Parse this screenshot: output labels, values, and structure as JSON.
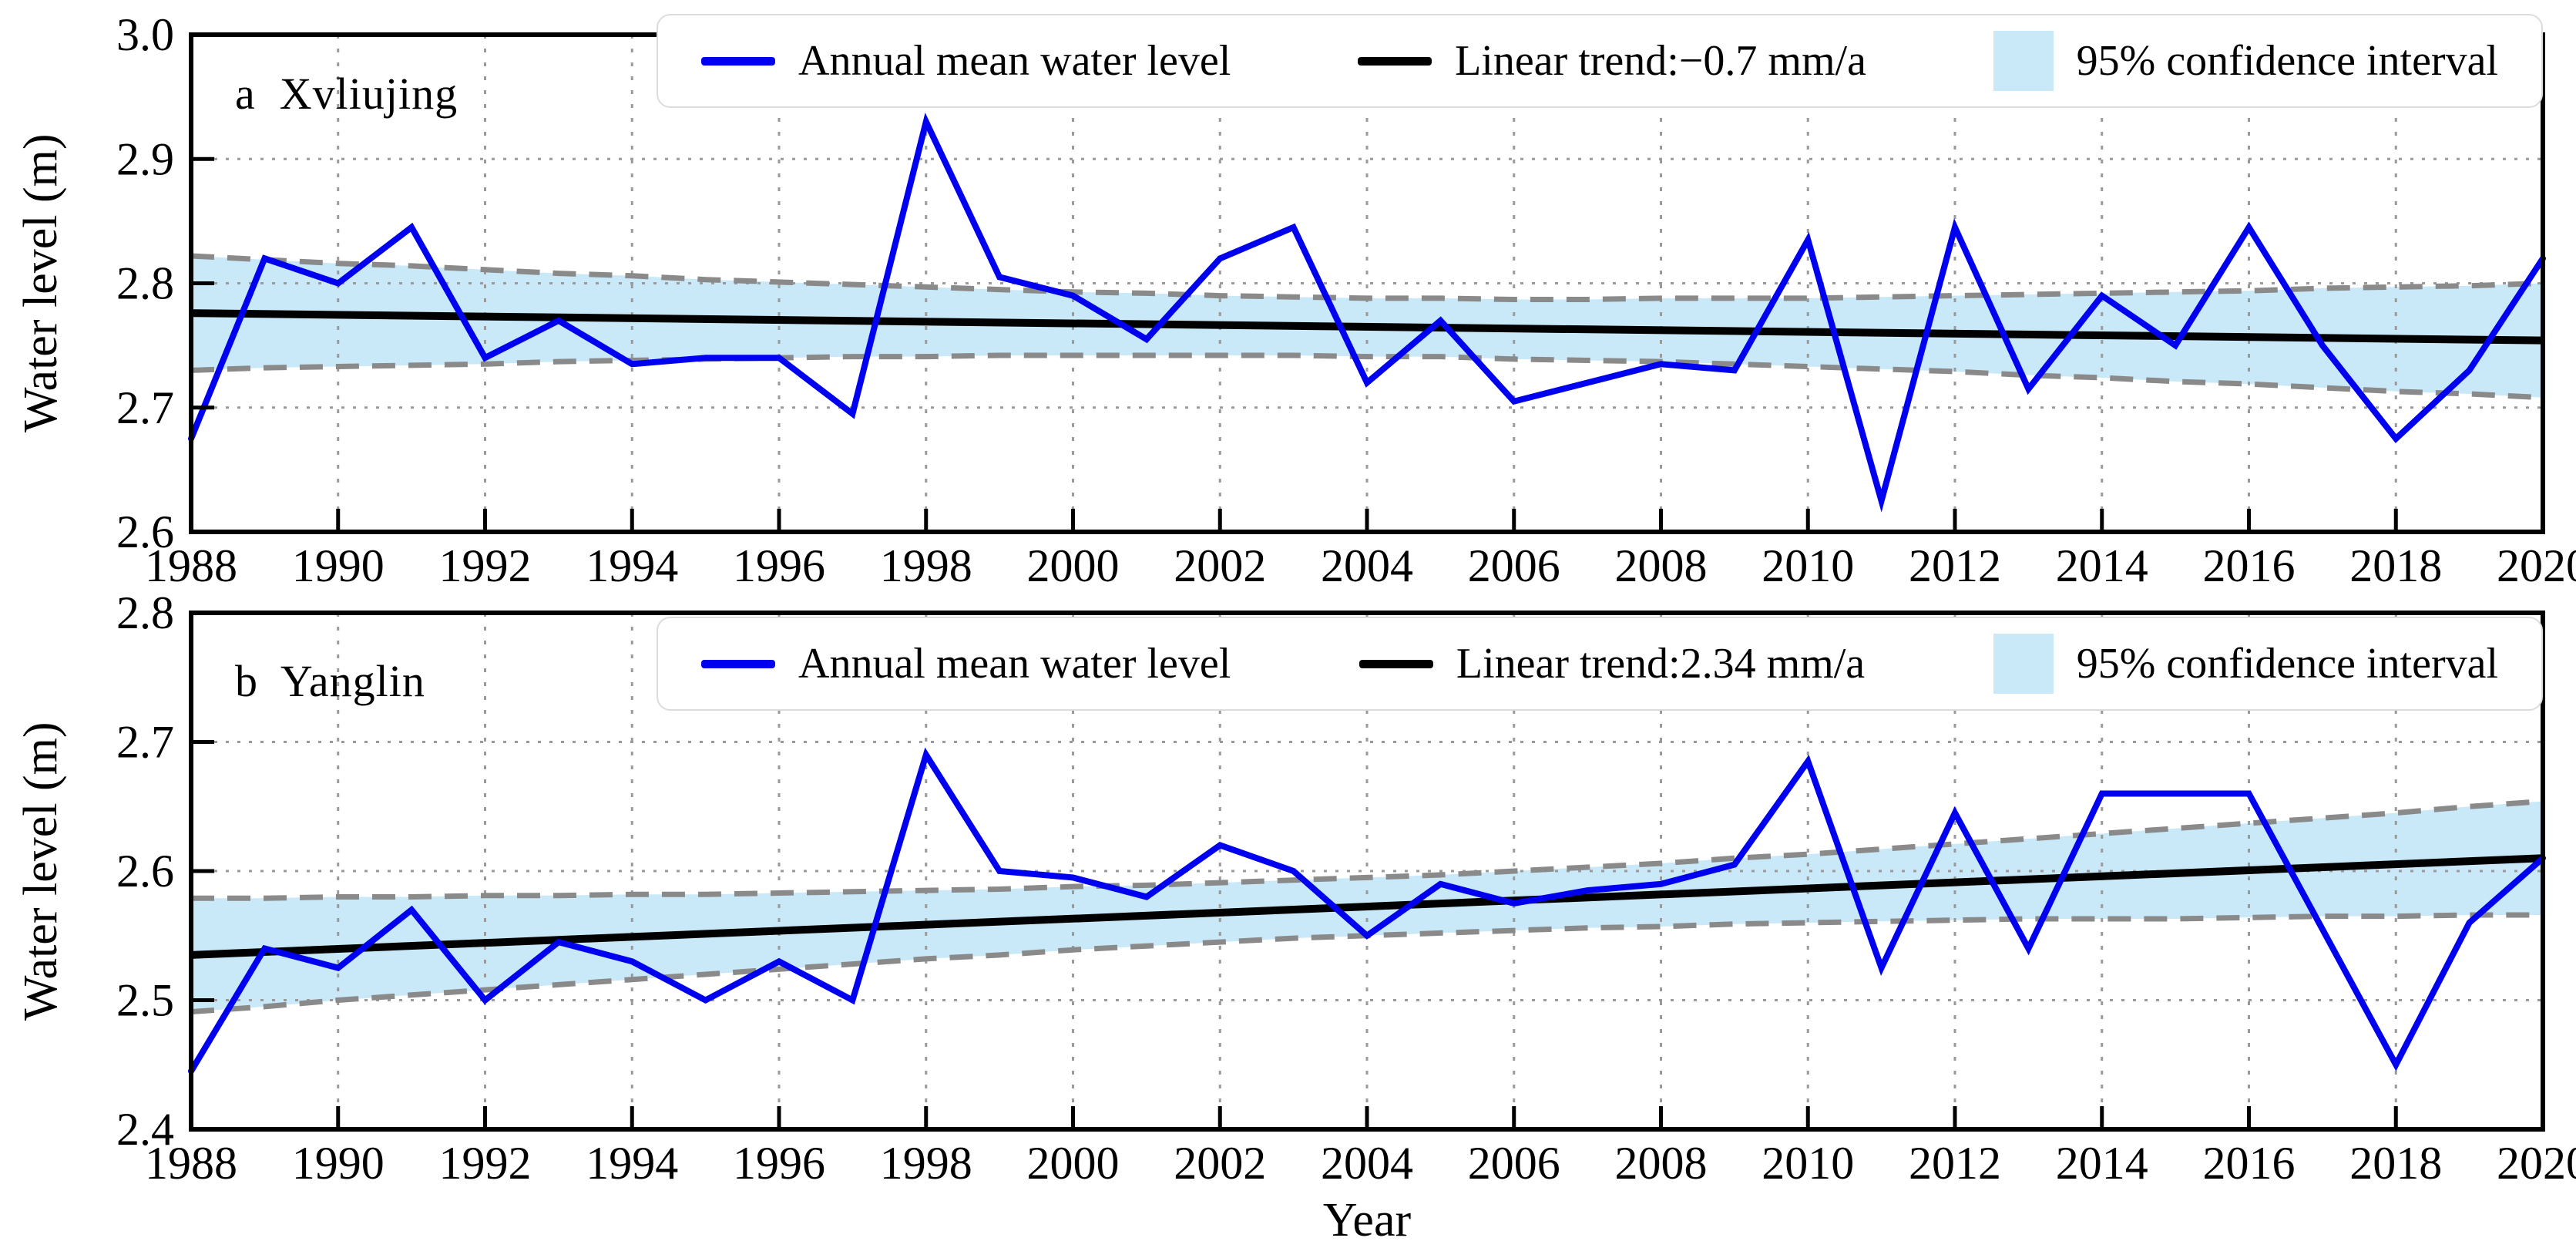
{
  "figure": {
    "xlabel": "Year",
    "ylabel": "Water level (m)"
  },
  "colors": {
    "annual_line": "#0000f0",
    "trend_line": "#000000",
    "ci_fill": "#c9e8f8",
    "ci_edge": "#8a8a8a",
    "grid": "#9a9a9a",
    "axis": "#000000"
  },
  "chart_data": [
    {
      "type": "line",
      "panel_label": "a  Xvliujing",
      "ylabel": "Water level (m)",
      "ylim": [
        2.6,
        3.0
      ],
      "yticks": [
        2.6,
        2.7,
        2.8,
        2.9,
        3.0
      ],
      "xticks": [
        1988,
        1990,
        1992,
        1994,
        1996,
        1998,
        2000,
        2002,
        2004,
        2006,
        2008,
        2010,
        2012,
        2014,
        2016,
        2018,
        2020
      ],
      "x": [
        1988,
        1989,
        1990,
        1991,
        1992,
        1993,
        1994,
        1995,
        1996,
        1997,
        1998,
        1999,
        2000,
        2001,
        2002,
        2003,
        2004,
        2005,
        2006,
        2007,
        2008,
        2009,
        2010,
        2011,
        2012,
        2013,
        2014,
        2015,
        2016,
        2017,
        2018,
        2019,
        2020
      ],
      "series": [
        {
          "name": "Annual mean water level",
          "color": "#0000f0",
          "values": [
            2.675,
            2.82,
            2.8,
            2.845,
            2.74,
            2.77,
            2.735,
            2.74,
            2.74,
            2.695,
            2.93,
            2.805,
            2.79,
            2.755,
            2.82,
            2.845,
            2.72,
            2.77,
            2.705,
            2.72,
            2.735,
            2.73,
            2.835,
            2.625,
            2.845,
            2.715,
            2.79,
            2.75,
            2.845,
            2.75,
            2.675,
            2.73,
            2.82
          ]
        }
      ],
      "trend": {
        "label": "Linear trend:−0.7 mm/a",
        "slope_mm_per_a": -0.7,
        "start": 2.776,
        "end": 2.754,
        "color": "#000000"
      },
      "band": {
        "name": "95% confidence interval",
        "fill": "#c9e8f8",
        "edge": "#8a8a8a",
        "upper": [
          2.822,
          2.819,
          2.816,
          2.814,
          2.811,
          2.808,
          2.806,
          2.803,
          2.801,
          2.799,
          2.797,
          2.795,
          2.793,
          2.792,
          2.79,
          2.789,
          2.788,
          2.788,
          2.787,
          2.787,
          2.788,
          2.788,
          2.788,
          2.789,
          2.79,
          2.791,
          2.792,
          2.793,
          2.794,
          2.796,
          2.797,
          2.798,
          2.8
        ],
        "lower": [
          2.73,
          2.732,
          2.733,
          2.734,
          2.735,
          2.737,
          2.738,
          2.739,
          2.74,
          2.741,
          2.741,
          2.742,
          2.742,
          2.742,
          2.742,
          2.742,
          2.741,
          2.741,
          2.739,
          2.738,
          2.737,
          2.735,
          2.733,
          2.731,
          2.729,
          2.726,
          2.724,
          2.721,
          2.719,
          2.716,
          2.713,
          2.711,
          2.708
        ]
      }
    },
    {
      "type": "line",
      "panel_label": "b  Yanglin",
      "ylabel": "Water level (m)",
      "ylim": [
        2.4,
        2.8
      ],
      "yticks": [
        2.4,
        2.5,
        2.6,
        2.7,
        2.8
      ],
      "xticks": [
        1988,
        1990,
        1992,
        1994,
        1996,
        1998,
        2000,
        2002,
        2004,
        2006,
        2008,
        2010,
        2012,
        2014,
        2016,
        2018,
        2020
      ],
      "x": [
        1988,
        1989,
        1990,
        1991,
        1992,
        1993,
        1994,
        1995,
        1996,
        1997,
        1998,
        1999,
        2000,
        2001,
        2002,
        2003,
        2004,
        2005,
        2006,
        2007,
        2008,
        2009,
        2010,
        2011,
        2012,
        2013,
        2014,
        2015,
        2016,
        2017,
        2018,
        2019,
        2020
      ],
      "series": [
        {
          "name": "Annual mean water level",
          "color": "#0000f0",
          "values": [
            2.445,
            2.54,
            2.525,
            2.57,
            2.5,
            2.545,
            2.53,
            2.5,
            2.53,
            2.5,
            2.69,
            2.6,
            2.595,
            2.58,
            2.62,
            2.6,
            2.55,
            2.59,
            2.575,
            2.585,
            2.59,
            2.605,
            2.685,
            2.525,
            2.645,
            2.54,
            2.66,
            2.66,
            2.66,
            2.555,
            2.45,
            2.56,
            2.61
          ]
        }
      ],
      "trend": {
        "label": "Linear trend:2.34 mm/a",
        "slope_mm_per_a": 2.34,
        "start": 2.535,
        "end": 2.61,
        "color": "#000000"
      },
      "band": {
        "name": "95% confidence interval",
        "fill": "#c9e8f8",
        "edge": "#8a8a8a",
        "upper": [
          2.579,
          2.579,
          2.58,
          2.58,
          2.581,
          2.581,
          2.582,
          2.582,
          2.583,
          2.584,
          2.585,
          2.586,
          2.588,
          2.589,
          2.591,
          2.593,
          2.595,
          2.597,
          2.6,
          2.603,
          2.606,
          2.61,
          2.613,
          2.617,
          2.621,
          2.625,
          2.629,
          2.633,
          2.637,
          2.641,
          2.645,
          2.65,
          2.654
        ],
        "lower": [
          2.491,
          2.495,
          2.5,
          2.504,
          2.508,
          2.512,
          2.516,
          2.52,
          2.524,
          2.528,
          2.532,
          2.535,
          2.539,
          2.542,
          2.545,
          2.548,
          2.55,
          2.552,
          2.554,
          2.556,
          2.557,
          2.559,
          2.56,
          2.561,
          2.562,
          2.563,
          2.563,
          2.563,
          2.564,
          2.565,
          2.565,
          2.566,
          2.566
        ]
      }
    }
  ]
}
